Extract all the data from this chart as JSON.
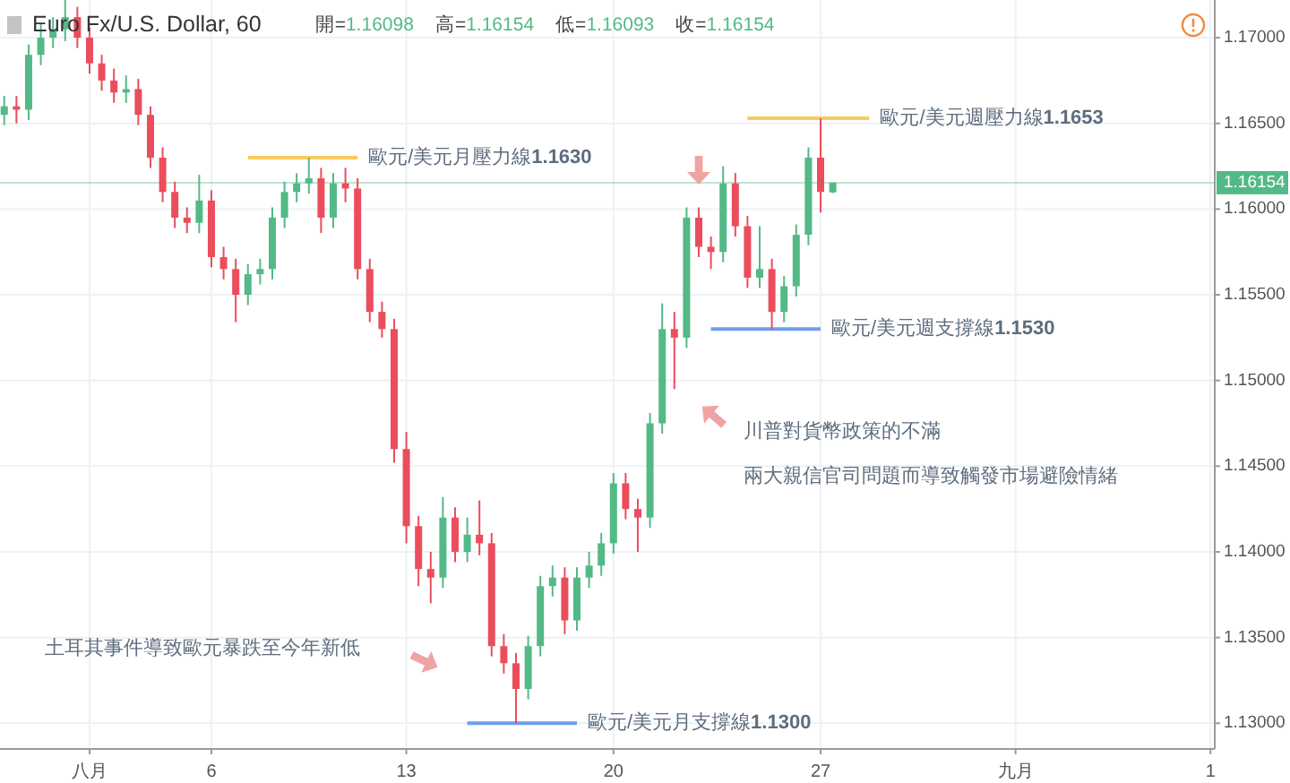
{
  "chart_data": {
    "type": "candlestick",
    "title": "Euro Fx/U.S. Dollar, 60",
    "annotations": [
      "開=1.16098",
      "高=1.16154",
      "低=1.16093",
      "收=1.16154",
      "土耳其事件導致歐元暴跌至今年新低",
      "川普對貨幣政策的不滿",
      "兩大親信官司問題而導致觸發市場避險情緒"
    ],
    "categories": [
      null,
      null,
      null,
      null,
      null,
      null,
      null,
      "八月",
      null,
      null,
      null,
      null,
      null,
      null,
      null,
      null,
      null,
      "6",
      null,
      null,
      null,
      null,
      null,
      null,
      null,
      null,
      null,
      null,
      null,
      null,
      null,
      null,
      null,
      "13",
      null,
      null,
      null,
      null,
      null,
      null,
      null,
      null,
      null,
      null,
      null,
      null,
      null,
      null,
      null,
      null,
      "20",
      null,
      null,
      null,
      null,
      null,
      null,
      null,
      null,
      null,
      null,
      null,
      null,
      null,
      null,
      null,
      null,
      "27",
      null,
      null,
      null,
      null,
      null,
      null,
      null,
      null,
      null,
      null,
      null,
      null,
      null,
      null,
      null,
      "九月",
      null,
      null,
      null,
      null,
      null,
      null,
      null,
      null,
      null,
      null,
      null,
      null,
      null,
      null,
      null,
      "1"
    ],
    "ohlc": [
      [
        1.1655,
        1.1666,
        1.1649,
        1.166
      ],
      [
        1.166,
        1.1666,
        1.165,
        1.1658
      ],
      [
        1.1658,
        1.1696,
        1.1652,
        1.169
      ],
      [
        1.169,
        1.1708,
        1.1684,
        1.17
      ],
      [
        1.17,
        1.1712,
        1.1694,
        1.1705
      ],
      [
        1.1705,
        1.1722,
        1.1698,
        1.1712
      ],
      [
        1.1712,
        1.1718,
        1.1694,
        1.17
      ],
      [
        1.17,
        1.1706,
        1.1679,
        1.1685
      ],
      [
        1.1685,
        1.169,
        1.1669,
        1.1675
      ],
      [
        1.1675,
        1.1682,
        1.1662,
        1.1668
      ],
      [
        1.1668,
        1.1678,
        1.1662,
        1.167
      ],
      [
        1.167,
        1.1676,
        1.1649,
        1.1655
      ],
      [
        1.1655,
        1.166,
        1.1624,
        1.163
      ],
      [
        1.163,
        1.1636,
        1.1604,
        1.161
      ],
      [
        1.161,
        1.1616,
        1.1589,
        1.1595
      ],
      [
        1.1595,
        1.1601,
        1.1586,
        1.1592
      ],
      [
        1.1592,
        1.162,
        1.1586,
        1.1605
      ],
      [
        1.1605,
        1.1611,
        1.1566,
        1.1572
      ],
      [
        1.1572,
        1.1578,
        1.1559,
        1.1565
      ],
      [
        1.1565,
        1.1571,
        1.1534,
        1.155
      ],
      [
        1.155,
        1.1568,
        1.1544,
        1.1562
      ],
      [
        1.1562,
        1.1571,
        1.1556,
        1.1565
      ],
      [
        1.1565,
        1.1601,
        1.1559,
        1.1595
      ],
      [
        1.1595,
        1.1616,
        1.1589,
        1.161
      ],
      [
        1.161,
        1.1621,
        1.1604,
        1.1615
      ],
      [
        1.1615,
        1.163,
        1.1609,
        1.1618
      ],
      [
        1.1618,
        1.1624,
        1.1586,
        1.1595
      ],
      [
        1.1595,
        1.1621,
        1.1589,
        1.1615
      ],
      [
        1.1615,
        1.1624,
        1.1604,
        1.1612
      ],
      [
        1.1612,
        1.1618,
        1.1559,
        1.1565
      ],
      [
        1.1565,
        1.1571,
        1.1534,
        1.154
      ],
      [
        1.154,
        1.1546,
        1.1525,
        1.153
      ],
      [
        1.153,
        1.1536,
        1.1452,
        1.146
      ],
      [
        1.146,
        1.147,
        1.1405,
        1.1415
      ],
      [
        1.1415,
        1.1421,
        1.138,
        1.139
      ],
      [
        1.139,
        1.14,
        1.137,
        1.1385
      ],
      [
        1.1385,
        1.1432,
        1.1379,
        1.142
      ],
      [
        1.142,
        1.1426,
        1.1394,
        1.14
      ],
      [
        1.14,
        1.142,
        1.1394,
        1.141
      ],
      [
        1.141,
        1.143,
        1.1398,
        1.1405
      ],
      [
        1.1405,
        1.1411,
        1.1339,
        1.1345
      ],
      [
        1.1345,
        1.1352,
        1.1329,
        1.1335
      ],
      [
        1.1335,
        1.1341,
        1.13,
        1.132
      ],
      [
        1.132,
        1.1351,
        1.1314,
        1.1345
      ],
      [
        1.1345,
        1.1386,
        1.1339,
        1.138
      ],
      [
        1.138,
        1.1392,
        1.1374,
        1.1385
      ],
      [
        1.1385,
        1.1391,
        1.1352,
        1.136
      ],
      [
        1.136,
        1.1391,
        1.1354,
        1.1385
      ],
      [
        1.1385,
        1.14,
        1.1379,
        1.1392
      ],
      [
        1.1392,
        1.1411,
        1.1386,
        1.1405
      ],
      [
        1.1405,
        1.1446,
        1.1399,
        1.144
      ],
      [
        1.144,
        1.1446,
        1.1419,
        1.1425
      ],
      [
        1.1425,
        1.1431,
        1.14,
        1.142
      ],
      [
        1.142,
        1.1481,
        1.1414,
        1.1475
      ],
      [
        1.1475,
        1.1545,
        1.1469,
        1.153
      ],
      [
        1.153,
        1.154,
        1.1495,
        1.1525
      ],
      [
        1.1525,
        1.1601,
        1.1519,
        1.1595
      ],
      [
        1.1595,
        1.1601,
        1.1572,
        1.1578
      ],
      [
        1.1578,
        1.1584,
        1.1565,
        1.1575
      ],
      [
        1.1575,
        1.1625,
        1.1569,
        1.1615
      ],
      [
        1.1615,
        1.1621,
        1.1584,
        1.159
      ],
      [
        1.159,
        1.1596,
        1.1554,
        1.156
      ],
      [
        1.156,
        1.159,
        1.1554,
        1.1565
      ],
      [
        1.1565,
        1.1571,
        1.153,
        1.154
      ],
      [
        1.154,
        1.1561,
        1.1534,
        1.1555
      ],
      [
        1.1555,
        1.1591,
        1.1549,
        1.1585
      ],
      [
        1.1585,
        1.1636,
        1.1579,
        1.163
      ],
      [
        1.163,
        1.1653,
        1.1598,
        1.161
      ],
      [
        1.16098,
        1.16154,
        1.16093,
        1.16154
      ],
      null,
      null,
      null,
      null,
      null,
      null,
      null,
      null,
      null,
      null,
      null,
      null,
      null,
      null,
      null,
      null,
      null,
      null,
      null,
      null,
      null,
      null,
      null,
      null,
      null,
      null,
      null,
      null,
      null,
      null,
      null
    ],
    "series": [
      {
        "type": "line",
        "name": "歐元/美元月壓力線**1.1630**",
        "color": "#f9cb5c",
        "values": [
          null,
          null,
          null,
          null,
          null,
          null,
          null,
          null,
          null,
          null,
          null,
          null,
          null,
          null,
          null,
          null,
          null,
          null,
          null,
          null,
          1.163,
          1.163,
          1.163,
          1.163,
          1.163,
          1.163,
          1.163,
          1.163,
          1.163,
          1.163,
          null,
          null,
          null,
          null,
          null,
          null,
          null,
          null,
          null,
          null,
          null,
          null,
          null,
          null,
          null,
          null,
          null,
          null,
          null,
          null,
          null,
          null,
          null,
          null,
          null,
          null,
          null,
          null,
          null,
          null,
          null,
          null,
          null,
          null,
          null,
          null,
          null,
          null,
          null,
          null,
          null,
          null,
          null,
          null,
          null,
          null,
          null,
          null,
          null,
          null,
          null,
          null,
          null,
          null,
          null,
          null,
          null,
          null,
          null,
          null,
          null,
          null,
          null,
          null,
          null,
          null,
          null,
          null,
          null,
          null
        ]
      },
      {
        "type": "line",
        "name": "歐元/美元週壓力線**1.1653**",
        "color": "#f9cb5c",
        "values": [
          null,
          null,
          null,
          null,
          null,
          null,
          null,
          null,
          null,
          null,
          null,
          null,
          null,
          null,
          null,
          null,
          null,
          null,
          null,
          null,
          null,
          null,
          null,
          null,
          null,
          null,
          null,
          null,
          null,
          null,
          null,
          null,
          null,
          null,
          null,
          null,
          null,
          null,
          null,
          null,
          null,
          null,
          null,
          null,
          null,
          null,
          null,
          null,
          null,
          null,
          null,
          null,
          null,
          null,
          null,
          null,
          null,
          null,
          null,
          null,
          null,
          1.1653,
          1.1653,
          1.1653,
          1.1653,
          1.1653,
          1.1653,
          1.1653,
          1.1653,
          1.1653,
          1.1653,
          1.1653,
          null,
          null,
          null,
          null,
          null,
          null,
          null,
          null,
          null,
          null,
          null,
          null,
          null,
          null,
          null,
          null,
          null,
          null,
          null,
          null,
          null,
          null,
          null,
          null,
          null,
          null,
          null,
          null
        ]
      },
      {
        "type": "line",
        "name": "歐元/美元週支撐線**1.1530**",
        "color": "#6d9eeb",
        "values": [
          null,
          null,
          null,
          null,
          null,
          null,
          null,
          null,
          null,
          null,
          null,
          null,
          null,
          null,
          null,
          null,
          null,
          null,
          null,
          null,
          null,
          null,
          null,
          null,
          null,
          null,
          null,
          null,
          null,
          null,
          null,
          null,
          null,
          null,
          null,
          null,
          null,
          null,
          null,
          null,
          null,
          null,
          null,
          null,
          null,
          null,
          null,
          null,
          null,
          null,
          null,
          null,
          null,
          null,
          null,
          null,
          null,
          null,
          1.153,
          1.153,
          1.153,
          1.153,
          1.153,
          1.153,
          1.153,
          1.153,
          1.153,
          1.153,
          null,
          null,
          null,
          null,
          null,
          null,
          null,
          null,
          null,
          null,
          null,
          null,
          null,
          null,
          null,
          null,
          null,
          null,
          null,
          null,
          null,
          null,
          null,
          null,
          null,
          null,
          null,
          null,
          null,
          null,
          null,
          null
        ]
      },
      {
        "type": "line",
        "name": "歐元/美元月支撐線**1.1300**",
        "color": "#6d9eeb",
        "values": [
          null,
          null,
          null,
          null,
          null,
          null,
          null,
          null,
          null,
          null,
          null,
          null,
          null,
          null,
          null,
          null,
          null,
          null,
          null,
          null,
          null,
          null,
          null,
          null,
          null,
          null,
          null,
          null,
          null,
          null,
          null,
          null,
          null,
          null,
          null,
          null,
          null,
          null,
          1.13,
          1.13,
          1.13,
          1.13,
          1.13,
          1.13,
          1.13,
          1.13,
          1.13,
          1.13,
          null,
          null,
          null,
          null,
          null,
          null,
          null,
          null,
          null,
          null,
          null,
          null,
          null,
          null,
          null,
          null,
          null,
          null,
          null,
          null,
          null,
          null,
          null,
          null,
          null,
          null,
          null,
          null,
          null,
          null,
          null,
          null,
          null,
          null,
          null,
          null,
          null,
          null,
          null,
          null,
          null,
          null,
          null,
          null,
          null,
          null,
          null,
          null,
          null,
          null,
          null,
          null
        ]
      }
    ],
    "ref_lines": [
      {
        "axis": "y",
        "value": 1.16154,
        "label": "1.16154",
        "color": "#53b987"
      }
    ],
    "ylim": [
      1.1285,
      1.1722
    ],
    "yticks": [
      {
        "value": 1.13,
        "label": "1.13000"
      },
      {
        "value": 1.135,
        "label": "1.13500"
      },
      {
        "value": 1.14,
        "label": "1.14000"
      },
      {
        "value": 1.145,
        "label": "1.14500"
      },
      {
        "value": 1.15,
        "label": "1.15000"
      },
      {
        "value": 1.155,
        "label": "1.15500"
      },
      {
        "value": 1.16,
        "label": "1.16000"
      },
      {
        "value": 1.165,
        "label": "1.16500"
      },
      {
        "value": 1.17,
        "label": "1.17000"
      }
    ],
    "grid": true
  }
}
